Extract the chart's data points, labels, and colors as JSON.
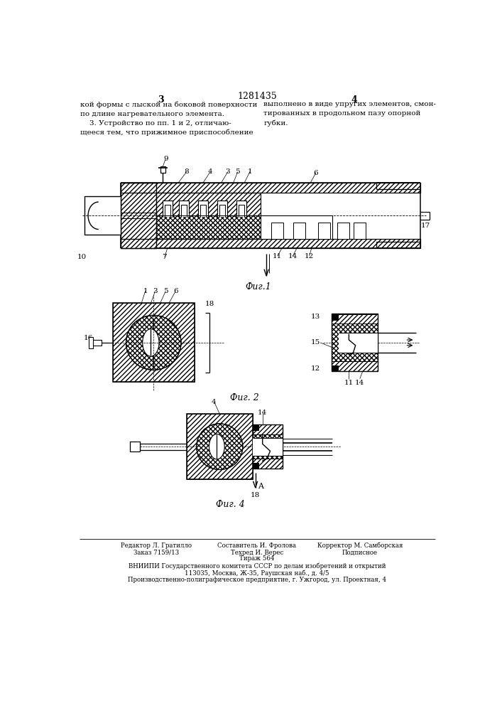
{
  "title": "1281435",
  "page_num_left": "3",
  "page_num_right": "4",
  "text_left": "кой формы с лыской на боковой поверхности\nпо длине нагревательного элемента.\n    3. Устройство по пп. 1 и 2, отличаю-\nщееся тем, что прижимное приспособление",
  "text_right": "выполнено в виде упругих элементов, смон-\nтированных в продольном пазу опорной\nгубки.",
  "fig1_label": "Фиг.1",
  "fig2_label": "Фиг. 2",
  "fig4_label": "Фиг. 4",
  "footer_col1_line1": "Редактор Л. Гратилло",
  "footer_col1_line2": "Заказ 7159/13",
  "footer_col2_line1": "Составитель И. Фролова",
  "footer_col2_line2": "Техред И. Верес",
  "footer_col2_line3": "Тираж 564",
  "footer_col3_line1": "Корректор М. Самборская",
  "footer_col3_line2": "Подписное",
  "footer_line4": "ВНИИПИ Государственного комитета СССР по делам изобретений и открытий",
  "footer_line5": "113035, Москва, Ж-35, Раушская наб., д. 4/5",
  "footer_line6": "Производственно-полиграфическое предприятие, г. Ужгород, ул. Проектная, 4",
  "bg_color": "#ffffff",
  "line_color": "#000000"
}
